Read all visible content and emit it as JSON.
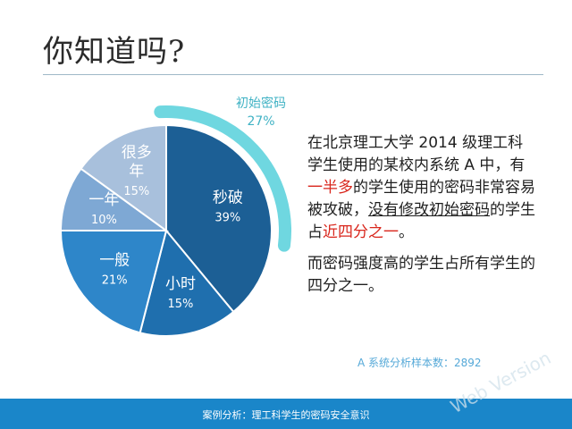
{
  "slide": {
    "title": "你知道吗?",
    "paragraph1": {
      "seg1": "在北京理工大学 2014 级理工科学生使用的某校内系统 A 中，有",
      "seg2": "一半多",
      "seg3": "的学生使用的密码非常容易被攻破，",
      "seg4": "没有修改初始密码",
      "seg5": "的学生占",
      "seg6": "近四分之一",
      "seg7": "。"
    },
    "paragraph2": "而密码强度高的学生占所有学生的四分之一。",
    "footnote": "A 系统分析样本数：2892",
    "footer": "案例分析：理工科学生的密码安全意识",
    "watermark": "Web Version",
    "colors": {
      "accent_red": "#d9261c",
      "callout": "#6fd7e0",
      "footer_bar": "#1a86c9"
    }
  },
  "chart_data": {
    "type": "pie",
    "slices": [
      {
        "label": "秒破",
        "value": 39,
        "value_label": "39%",
        "color": "#1c5f95"
      },
      {
        "label": "小时",
        "value": 15,
        "value_label": "15%",
        "color": "#1f6fae"
      },
      {
        "label": "一般",
        "value": 21,
        "value_label": "21%",
        "color": "#2e86c9"
      },
      {
        "label": "一年",
        "value": 10,
        "value_label": "10%",
        "color": "#7ea8d4"
      },
      {
        "label": "很多年",
        "value": 15,
        "value_label": "15%",
        "color": "#a8c0dc"
      }
    ],
    "callout": {
      "label": "初始密码",
      "value": 27,
      "value_label": "27%"
    }
  }
}
